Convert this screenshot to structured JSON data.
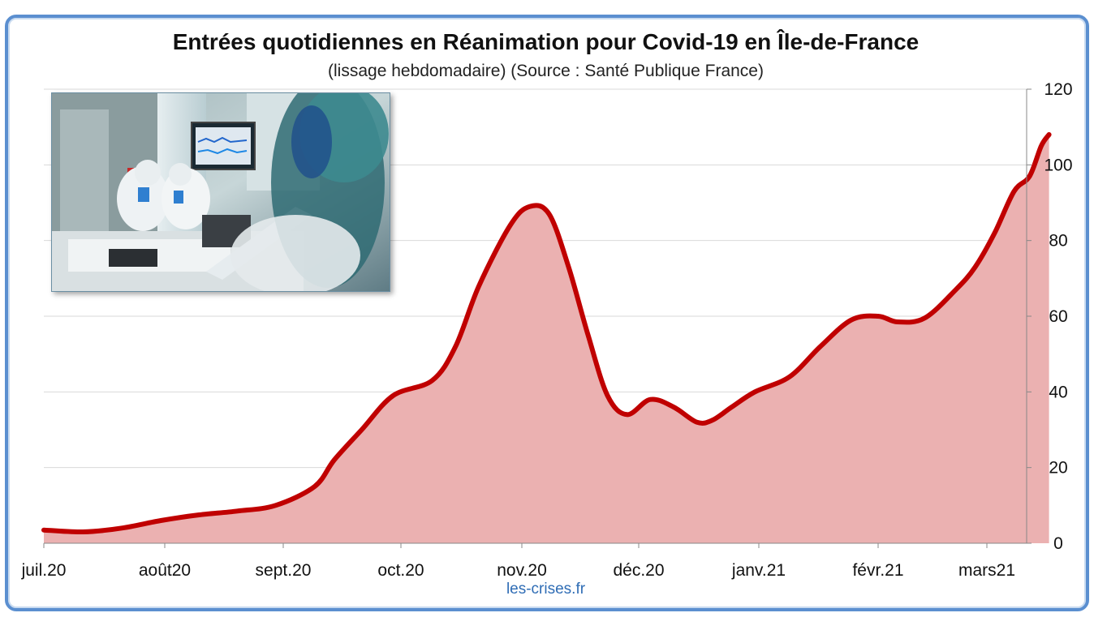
{
  "title": "Entrées quotidiennes  en Réanimation pour Covid-19  en Île-de-France",
  "subtitle": "(lissage hebdomadaire) (Source : Santé Publique France)",
  "watermark": "les-crises.fr",
  "colors": {
    "line": "#c00000",
    "area": "#ebb1b1",
    "frame": "#5b8fd0",
    "grid": "#d9d9d9"
  },
  "photo": {
    "icon": "icu-photo"
  },
  "chart_data": {
    "type": "area",
    "title": "Entrées quotidiennes  en Réanimation pour Covid-19  en Île-de-France",
    "subtitle": "(lissage hebdomadaire) (Source : Santé Publique France)",
    "x_ticks": [
      "juil.20",
      "août20",
      "sept.20",
      "oct.20",
      "nov.20",
      "déc.20",
      "janv.21",
      "févr.21",
      "mars21"
    ],
    "y_ticks": [
      0,
      20,
      40,
      60,
      80,
      100,
      120
    ],
    "ylim": [
      0,
      120
    ],
    "y_axis_side": "right",
    "grid": true,
    "series": [
      {
        "day": [
          0,
          10,
          20,
          30,
          40,
          50,
          60,
          70,
          75,
          82,
          90,
          100,
          106,
          112,
          120,
          125,
          130,
          135,
          140,
          145,
          150,
          156,
          162,
          168,
          172,
          177,
          183,
          192,
          200,
          208,
          215,
          220,
          227,
          235,
          240,
          245,
          250,
          254,
          257,
          259
        ],
        "values": [
          3.5,
          3,
          4,
          6,
          7.5,
          8.5,
          10,
          15,
          22,
          30,
          39,
          43,
          52,
          68,
          84,
          89,
          87,
          73,
          55,
          39,
          34,
          38,
          36,
          32,
          32.5,
          36,
          40,
          44,
          52,
          59,
          60,
          58.5,
          59.5,
          67,
          73,
          82,
          93,
          97,
          105,
          108
        ]
      }
    ]
  }
}
